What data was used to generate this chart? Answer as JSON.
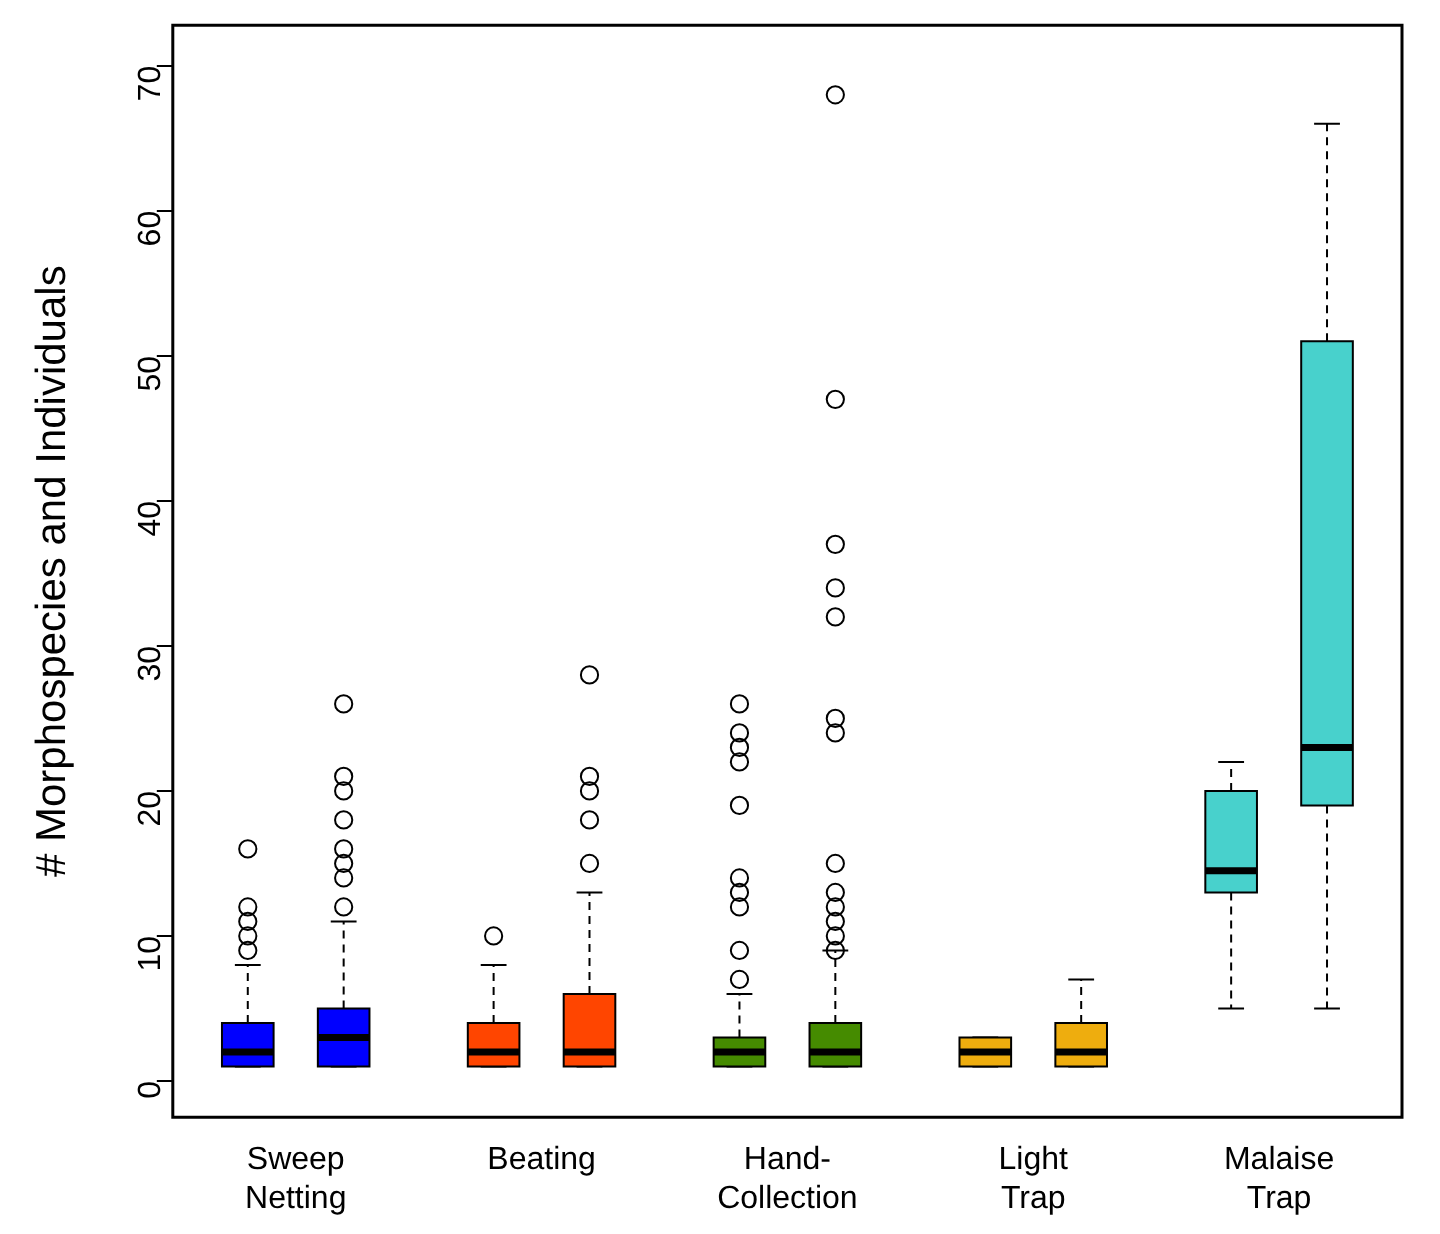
{
  "chart_data": {
    "type": "box",
    "ylabel": "# Morphospecies and Individuals",
    "categories": [
      "Sweep Netting",
      "Beating",
      "Hand-Collection",
      "Light Trap",
      "Malaise Trap"
    ],
    "ylim": [
      -2.5,
      72.8
    ],
    "yticks": [
      0,
      10,
      20,
      30,
      40,
      50,
      60,
      70
    ],
    "grid": false,
    "legend": false,
    "series": [
      {
        "colors": [
          "#0000ff",
          "#ff4500",
          "#458b00",
          "#eead0e",
          "#48d1cc"
        ],
        "boxes": [
          {
            "low": 1,
            "q1": 1,
            "median": 2,
            "q3": 4,
            "high": 8,
            "outliers": [
              9,
              10,
              11,
              12,
              16
            ]
          },
          {
            "low": 1,
            "q1": 1,
            "median": 2,
            "q3": 4,
            "high": 8,
            "outliers": [
              10
            ]
          },
          {
            "low": 1,
            "q1": 1,
            "median": 2,
            "q3": 3,
            "high": 6,
            "outliers": [
              7,
              9,
              12,
              13,
              14,
              19,
              22,
              23,
              24,
              26
            ]
          },
          {
            "low": 1,
            "q1": 1,
            "median": 2,
            "q3": 3,
            "high": 3
          },
          {
            "low": 5,
            "q1": 13,
            "median": 14.5,
            "q3": 20,
            "high": 22
          }
        ]
      },
      {
        "colors": [
          "#0000ff",
          "#ff4500",
          "#458b00",
          "#eead0e",
          "#48d1cc"
        ],
        "boxes": [
          {
            "low": 1,
            "q1": 1,
            "median": 3,
            "q3": 5,
            "high": 11,
            "outliers": [
              12,
              14,
              15,
              16,
              18,
              20,
              21,
              26
            ]
          },
          {
            "low": 1,
            "q1": 1,
            "median": 2,
            "q3": 6,
            "high": 13,
            "outliers": [
              15,
              18,
              20,
              21,
              28
            ]
          },
          {
            "low": 1,
            "q1": 1,
            "median": 2,
            "q3": 4,
            "high": 9,
            "outliers": [
              9,
              10,
              11,
              12,
              13,
              15,
              24,
              25,
              32,
              34,
              37,
              47,
              68
            ]
          },
          {
            "low": 1,
            "q1": 1,
            "median": 2,
            "q3": 4,
            "high": 7
          },
          {
            "low": 5,
            "q1": 19,
            "median": 23,
            "q3": 51,
            "high": 66
          }
        ]
      }
    ]
  }
}
